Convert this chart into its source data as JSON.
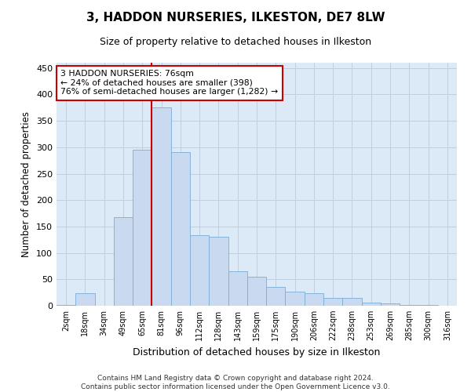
{
  "title": "3, HADDON NURSERIES, ILKESTON, DE7 8LW",
  "subtitle": "Size of property relative to detached houses in Ilkeston",
  "xlabel": "Distribution of detached houses by size in Ilkeston",
  "ylabel": "Number of detached properties",
  "footer_line1": "Contains HM Land Registry data © Crown copyright and database right 2024.",
  "footer_line2": "Contains public sector information licensed under the Open Government Licence v3.0.",
  "categories": [
    "2sqm",
    "18sqm",
    "34sqm",
    "49sqm",
    "65sqm",
    "81sqm",
    "96sqm",
    "112sqm",
    "128sqm",
    "143sqm",
    "159sqm",
    "175sqm",
    "190sqm",
    "206sqm",
    "222sqm",
    "238sqm",
    "253sqm",
    "269sqm",
    "285sqm",
    "300sqm",
    "316sqm"
  ],
  "values": [
    1,
    24,
    0,
    168,
    296,
    375,
    291,
    134,
    130,
    65,
    55,
    35,
    26,
    24,
    15,
    15,
    6,
    4,
    1,
    1,
    0
  ],
  "bar_color": "#c8d9f0",
  "bar_edge_color": "#7aadd4",
  "grid_color": "#c0cedf",
  "bg_color": "#dce9f7",
  "annotation_text": "3 HADDON NURSERIES: 76sqm\n← 24% of detached houses are smaller (398)\n76% of semi-detached houses are larger (1,282) →",
  "vline_color": "#cc0000",
  "annotation_box_color": "#cc0000",
  "ylim": [
    0,
    460
  ],
  "yticks": [
    0,
    50,
    100,
    150,
    200,
    250,
    300,
    350,
    400,
    450
  ],
  "figwidth": 6.0,
  "figheight": 5.0,
  "dpi": 100
}
